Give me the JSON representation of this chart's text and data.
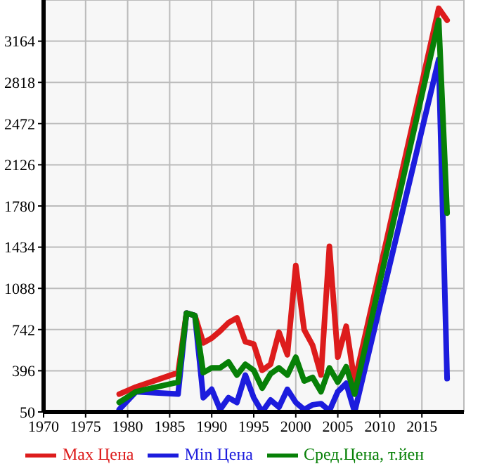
{
  "chart_data": {
    "type": "line",
    "x": [
      1979,
      1981,
      1986,
      1987,
      1988,
      1989,
      1990,
      1991,
      1992,
      1993,
      1994,
      1995,
      1996,
      1997,
      1998,
      1999,
      2000,
      2001,
      2002,
      2003,
      2004,
      2005,
      2006,
      2007,
      2017,
      2018
    ],
    "series": [
      {
        "name": "Max Цена",
        "color": "#dd1c1c",
        "values": [
          200,
          260,
          380,
          880,
          860,
          630,
          670,
          730,
          800,
          840,
          640,
          620,
          400,
          450,
          720,
          530,
          1280,
          740,
          610,
          360,
          1440,
          510,
          770,
          300,
          3440,
          3340
        ]
      },
      {
        "name": "Min Цена",
        "color": "#1c1cdd",
        "values": [
          70,
          220,
          200,
          880,
          860,
          170,
          240,
          70,
          170,
          130,
          360,
          170,
          50,
          150,
          90,
          240,
          130,
          70,
          110,
          120,
          60,
          220,
          290,
          50,
          3010,
          330
        ]
      },
      {
        "name": "Сред.Цена, т.йен",
        "color": "#078007",
        "values": [
          130,
          220,
          300,
          880,
          860,
          380,
          420,
          420,
          470,
          360,
          450,
          400,
          250,
          370,
          420,
          360,
          510,
          310,
          340,
          220,
          420,
          300,
          430,
          200,
          3340,
          1720
        ]
      }
    ],
    "xlim": [
      1970,
      2020
    ],
    "xticks": [
      1970,
      1975,
      1980,
      1985,
      1990,
      1995,
      2000,
      2005,
      2010,
      2015
    ],
    "ylim": [
      50,
      3510
    ],
    "yticks": [
      50,
      396,
      742,
      1088,
      1434,
      1780,
      2126,
      2472,
      2818,
      3164
    ],
    "grid": true,
    "legend": "bottom",
    "marker": "none",
    "line_style": "solid"
  }
}
